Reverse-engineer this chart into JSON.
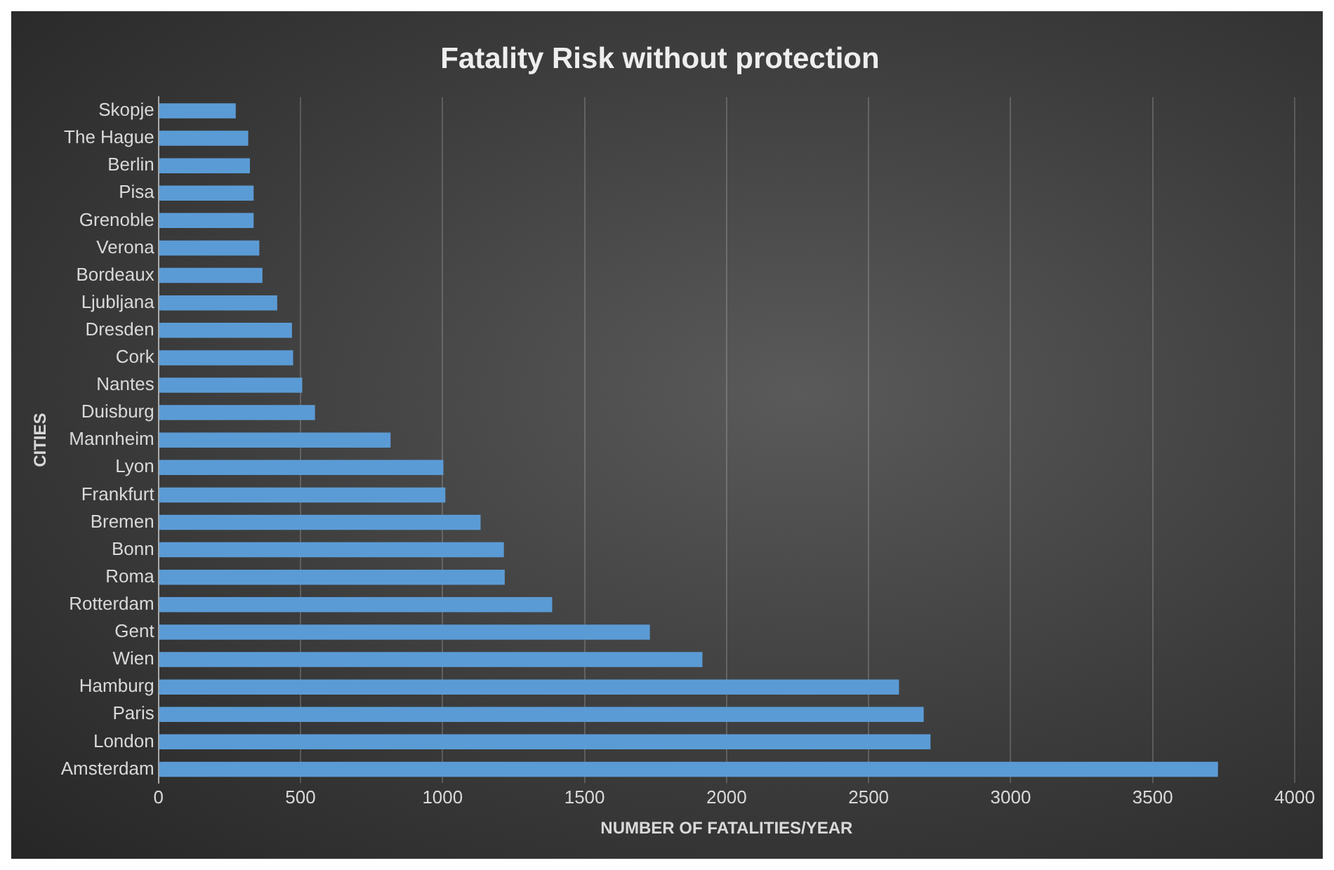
{
  "chart_data": {
    "type": "bar",
    "orientation": "horizontal",
    "title": "Fatality Risk without protection",
    "xlabel": "NUMBER OF FATALITIES/YEAR",
    "ylabel": "CITIES",
    "categories": [
      "Skopje",
      "The Hague",
      "Berlin",
      "Pisa",
      "Grenoble",
      "Verona",
      "Bordeaux",
      "Ljubljana",
      "Dresden",
      "Cork",
      "Nantes",
      "Duisburg",
      "Mannheim",
      "Lyon",
      "Frankfurt",
      "Bremen",
      "Bonn",
      "Roma",
      "Rotterdam",
      "Gent",
      "Wien",
      "Hamburg",
      "Paris",
      "London",
      "Amsterdam"
    ],
    "values": [
      272,
      316,
      322,
      335,
      335,
      355,
      366,
      418,
      470,
      474,
      506,
      551,
      817,
      1003,
      1010,
      1134,
      1216,
      1219,
      1386,
      1730,
      1915,
      2607,
      2694,
      2718,
      3730
    ],
    "color": "#5b9bd5",
    "xlim": [
      0,
      4000
    ],
    "xticks": [
      0,
      500,
      1000,
      1500,
      2000,
      2500,
      3000,
      3500,
      4000
    ],
    "grid": "x",
    "legend": false
  }
}
